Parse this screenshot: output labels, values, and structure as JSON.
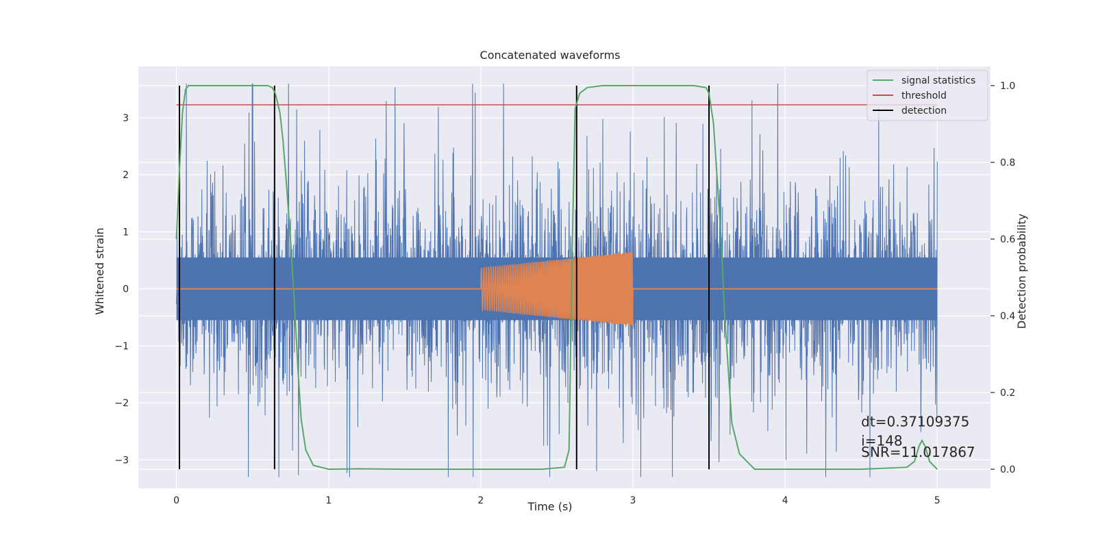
{
  "chart_data": {
    "type": "line",
    "title": "Concatenated waveforms",
    "xlabel": "Time (s)",
    "ylabel_left": "Whitened strain",
    "ylabel_right": "Detection probability",
    "xlim": [
      -0.25,
      5.35
    ],
    "ylim_left": [
      -3.5,
      3.9
    ],
    "ylim_right": [
      -0.05,
      1.05
    ],
    "xticks": [
      0,
      1,
      2,
      3,
      4,
      5
    ],
    "yticks_left": [
      -3,
      -2,
      -1,
      0,
      1,
      2,
      3
    ],
    "yticks_right": [
      0.0,
      0.2,
      0.4,
      0.6,
      0.8,
      1.0
    ],
    "xtick_labels": [
      "0",
      "1",
      "2",
      "3",
      "4",
      "5"
    ],
    "ytick_labels_left": [
      "−3",
      "−2",
      "−1",
      "0",
      "1",
      "2",
      "3"
    ],
    "ytick_labels_right": [
      "0.0",
      "0.2",
      "0.4",
      "0.6",
      "0.8",
      "1.0"
    ],
    "grid": true,
    "legend_position": "top-right",
    "series": [
      {
        "name": "",
        "axis": "left",
        "kind": "noise",
        "color": "#4c72b0",
        "x_range": [
          0,
          5
        ],
        "core_amplitude": 0.55,
        "peak_range": [
          -3.3,
          3.6
        ]
      },
      {
        "name": "",
        "axis": "left",
        "kind": "chirp",
        "color": "#dd8452",
        "baseline_x": [
          0,
          5
        ],
        "baseline_y": 0,
        "chirp_x": [
          2.0,
          3.0
        ],
        "chirp_amplitude": [
          0.37,
          0.65
        ]
      },
      {
        "name": "signal statistics",
        "axis": "right",
        "color": "#55a868",
        "x": [
          0.0,
          0.02,
          0.04,
          0.06,
          0.08,
          0.1,
          0.2,
          0.4,
          0.6,
          0.63,
          0.65,
          0.68,
          0.7,
          0.72,
          0.75,
          0.78,
          0.8,
          0.82,
          0.85,
          0.9,
          1.0,
          1.2,
          1.5,
          2.0,
          2.4,
          2.55,
          2.58,
          2.6,
          2.62,
          2.65,
          2.7,
          2.8,
          3.0,
          3.2,
          3.4,
          3.48,
          3.5,
          3.53,
          3.55,
          3.58,
          3.6,
          3.63,
          3.65,
          3.7,
          3.8,
          4.0,
          4.5,
          4.8,
          4.85,
          4.88,
          4.9,
          4.92,
          4.95,
          5.0
        ],
        "y": [
          0.6,
          0.78,
          0.93,
          0.99,
          1.0,
          1.0,
          1.0,
          1.0,
          1.0,
          0.995,
          0.98,
          0.93,
          0.86,
          0.76,
          0.6,
          0.4,
          0.25,
          0.13,
          0.05,
          0.01,
          0.0,
          0.001,
          0.0,
          0.0,
          0.0,
          0.005,
          0.05,
          0.55,
          0.94,
          0.98,
          0.995,
          1.0,
          1.0,
          1.0,
          1.0,
          0.995,
          0.98,
          0.9,
          0.78,
          0.6,
          0.42,
          0.24,
          0.12,
          0.04,
          0.0,
          0.0,
          0.0,
          0.005,
          0.02,
          0.06,
          0.075,
          0.06,
          0.02,
          0.0
        ]
      },
      {
        "name": "threshold",
        "axis": "right",
        "color": "#c44e52",
        "x": [
          0,
          5
        ],
        "y": [
          0.95,
          0.95
        ]
      },
      {
        "name": "detection",
        "axis": "right",
        "kind": "vlines",
        "color": "#000000",
        "x": [
          0.02,
          0.645,
          2.63,
          3.5
        ],
        "ymin": 0.0,
        "ymax": 1.0
      }
    ],
    "annotations": [
      {
        "text": "dt=0.37109375",
        "x": 4.5,
        "y": 0.112,
        "axis": "right"
      },
      {
        "text": " i=148",
        "x": 4.5,
        "y": 0.062,
        "axis": "right"
      },
      {
        "text": "SNR=11.017867",
        "x": 4.5,
        "y": 0.032,
        "axis": "right"
      }
    ]
  }
}
